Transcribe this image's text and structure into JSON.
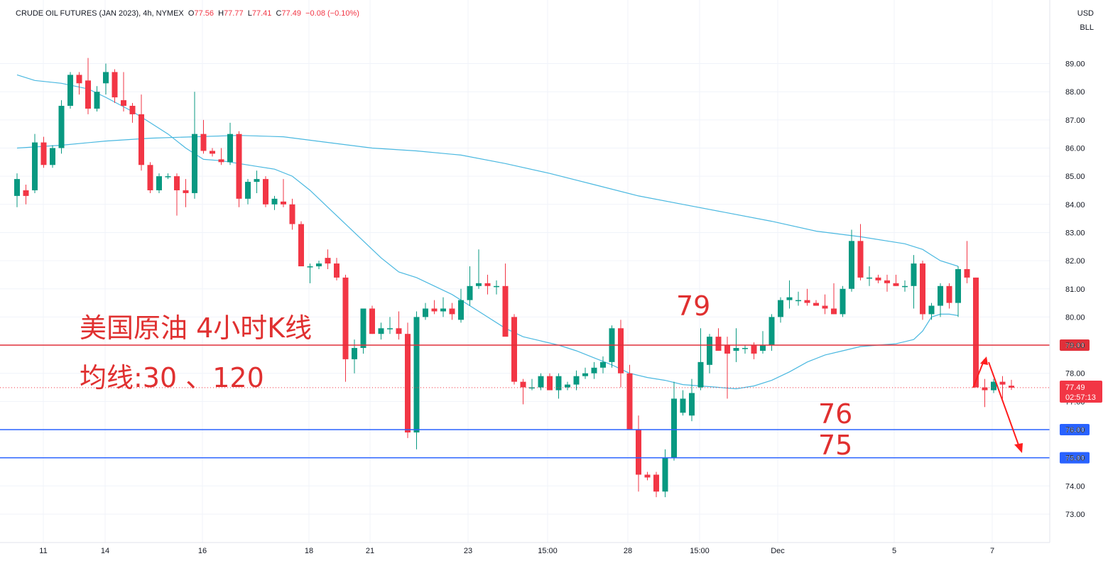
{
  "header": {
    "symbol": "CRUDE OIL FUTURES (JAN 2023), 4h, NYMEX",
    "open": "77.56",
    "high": "77.77",
    "low": "77.41",
    "close": "77.49",
    "change": "−0.08 (−0.10%)"
  },
  "currency": {
    "line1": "USD",
    "line2": "BLL"
  },
  "last_price": {
    "value": "77.49",
    "countdown": "02:57:13"
  },
  "annotations": {
    "title": "美国原油 4小时K线",
    "ma_text": "均线:30 、120",
    "level_79": "79",
    "level_76": "76",
    "level_75": "75"
  },
  "colors": {
    "up": "#089981",
    "down": "#f23645",
    "ma": "#4ab8e0",
    "resistance": "#e0303a",
    "support": "#2962ff"
  },
  "chart_data": {
    "type": "candlestick",
    "title": "",
    "yaxis": {
      "ticks": [
        73,
        74,
        75,
        76,
        77,
        78,
        79,
        80,
        81,
        82,
        83,
        84,
        85,
        86,
        87,
        88,
        89
      ],
      "ylim": [
        72.7,
        90.2
      ]
    },
    "xaxis": {
      "tick_labels": [
        "11",
        "14",
        "16",
        "18",
        "21",
        "23",
        "15:00",
        "28",
        "15:00",
        "Dec",
        "5",
        "7"
      ]
    },
    "horizontal_lines": [
      {
        "value": 79.0,
        "label": "79.00",
        "color": "red"
      },
      {
        "value": 76.0,
        "label": "76.00",
        "color": "blue"
      },
      {
        "value": 75.0,
        "label": "75.00",
        "color": "blue"
      }
    ],
    "candles": [
      {
        "o": 84.3,
        "h": 85.1,
        "l": 83.9,
        "c": 84.9
      },
      {
        "o": 84.5,
        "h": 84.7,
        "l": 84.0,
        "c": 84.3
      },
      {
        "o": 84.5,
        "h": 86.5,
        "l": 84.4,
        "c": 86.2
      },
      {
        "o": 86.2,
        "h": 86.4,
        "l": 85.3,
        "c": 85.4
      },
      {
        "o": 85.4,
        "h": 86.1,
        "l": 85.3,
        "c": 86.0
      },
      {
        "o": 86.0,
        "h": 87.7,
        "l": 85.8,
        "c": 87.5
      },
      {
        "o": 87.5,
        "h": 88.7,
        "l": 87.4,
        "c": 88.6
      },
      {
        "o": 88.6,
        "h": 88.7,
        "l": 87.9,
        "c": 88.3
      },
      {
        "o": 88.4,
        "h": 89.2,
        "l": 87.2,
        "c": 87.4
      },
      {
        "o": 87.4,
        "h": 88.2,
        "l": 87.3,
        "c": 88.0
      },
      {
        "o": 88.3,
        "h": 89.0,
        "l": 87.9,
        "c": 88.7
      },
      {
        "o": 88.7,
        "h": 88.8,
        "l": 87.6,
        "c": 87.8
      },
      {
        "o": 87.7,
        "h": 88.7,
        "l": 87.3,
        "c": 87.5
      },
      {
        "o": 87.5,
        "h": 87.6,
        "l": 86.9,
        "c": 87.2
      },
      {
        "o": 87.2,
        "h": 87.9,
        "l": 85.2,
        "c": 85.4
      },
      {
        "o": 85.4,
        "h": 85.5,
        "l": 84.4,
        "c": 84.5
      },
      {
        "o": 84.5,
        "h": 85.1,
        "l": 84.4,
        "c": 85.0
      },
      {
        "o": 85.0,
        "h": 85.1,
        "l": 84.9,
        "c": 85.0
      },
      {
        "o": 85.0,
        "h": 85.1,
        "l": 83.6,
        "c": 84.5
      },
      {
        "o": 84.5,
        "h": 84.9,
        "l": 83.9,
        "c": 84.4
      },
      {
        "o": 84.4,
        "h": 88.0,
        "l": 84.2,
        "c": 86.5
      },
      {
        "o": 86.5,
        "h": 87.0,
        "l": 85.8,
        "c": 85.9
      },
      {
        "o": 85.9,
        "h": 86.0,
        "l": 85.7,
        "c": 85.8
      },
      {
        "o": 85.6,
        "h": 86.0,
        "l": 85.4,
        "c": 85.5
      },
      {
        "o": 85.5,
        "h": 86.9,
        "l": 85.4,
        "c": 86.5
      },
      {
        "o": 86.5,
        "h": 86.6,
        "l": 83.9,
        "c": 84.2
      },
      {
        "o": 84.2,
        "h": 84.9,
        "l": 84.0,
        "c": 84.8
      },
      {
        "o": 84.8,
        "h": 85.2,
        "l": 84.4,
        "c": 84.9
      },
      {
        "o": 84.9,
        "h": 85.0,
        "l": 83.9,
        "c": 84.0
      },
      {
        "o": 84.0,
        "h": 84.3,
        "l": 83.8,
        "c": 84.2
      },
      {
        "o": 84.1,
        "h": 84.9,
        "l": 83.9,
        "c": 84.0
      },
      {
        "o": 84.0,
        "h": 84.2,
        "l": 83.1,
        "c": 83.3
      },
      {
        "o": 83.3,
        "h": 83.4,
        "l": 81.9,
        "c": 81.8
      },
      {
        "o": 81.8,
        "h": 81.9,
        "l": 81.2,
        "c": 81.8
      },
      {
        "o": 81.8,
        "h": 82.0,
        "l": 81.7,
        "c": 81.9
      },
      {
        "o": 82.1,
        "h": 82.4,
        "l": 81.7,
        "c": 81.9
      },
      {
        "o": 81.9,
        "h": 82.1,
        "l": 81.3,
        "c": 81.4
      },
      {
        "o": 81.4,
        "h": 81.5,
        "l": 77.7,
        "c": 78.5
      },
      {
        "o": 78.5,
        "h": 79.2,
        "l": 78.0,
        "c": 78.9
      },
      {
        "o": 78.9,
        "h": 80.3,
        "l": 78.7,
        "c": 80.3
      },
      {
        "o": 80.3,
        "h": 80.4,
        "l": 79.4,
        "c": 79.4
      },
      {
        "o": 79.4,
        "h": 79.8,
        "l": 79.2,
        "c": 79.6
      },
      {
        "o": 79.6,
        "h": 80.0,
        "l": 79.4,
        "c": 79.6
      },
      {
        "o": 79.6,
        "h": 80.2,
        "l": 79.2,
        "c": 79.4
      },
      {
        "o": 79.4,
        "h": 79.8,
        "l": 75.7,
        "c": 75.9
      },
      {
        "o": 75.9,
        "h": 80.2,
        "l": 75.3,
        "c": 80.0
      },
      {
        "o": 80.0,
        "h": 80.5,
        "l": 79.9,
        "c": 80.3
      },
      {
        "o": 80.3,
        "h": 80.6,
        "l": 80.1,
        "c": 80.2
      },
      {
        "o": 80.2,
        "h": 80.7,
        "l": 80.0,
        "c": 80.3
      },
      {
        "o": 80.3,
        "h": 80.5,
        "l": 79.9,
        "c": 80.1
      },
      {
        "o": 79.9,
        "h": 81.0,
        "l": 79.8,
        "c": 80.6
      },
      {
        "o": 80.6,
        "h": 81.8,
        "l": 80.4,
        "c": 81.1
      },
      {
        "o": 81.1,
        "h": 82.4,
        "l": 81.0,
        "c": 81.2
      },
      {
        "o": 81.2,
        "h": 81.5,
        "l": 80.8,
        "c": 81.1
      },
      {
        "o": 81.1,
        "h": 81.3,
        "l": 80.8,
        "c": 81.1
      },
      {
        "o": 81.1,
        "h": 81.9,
        "l": 79.4,
        "c": 79.3
      },
      {
        "o": 80.0,
        "h": 80.1,
        "l": 77.6,
        "c": 77.7
      },
      {
        "o": 77.7,
        "h": 77.8,
        "l": 76.9,
        "c": 77.5
      },
      {
        "o": 77.5,
        "h": 77.8,
        "l": 77.4,
        "c": 77.5
      },
      {
        "o": 77.5,
        "h": 78.0,
        "l": 77.4,
        "c": 77.9
      },
      {
        "o": 77.9,
        "h": 78.0,
        "l": 77.5,
        "c": 77.4
      },
      {
        "o": 77.4,
        "h": 78.0,
        "l": 77.1,
        "c": 77.9
      },
      {
        "o": 77.5,
        "h": 77.7,
        "l": 77.4,
        "c": 77.6
      },
      {
        "o": 77.6,
        "h": 78.1,
        "l": 77.4,
        "c": 77.9
      },
      {
        "o": 77.9,
        "h": 78.2,
        "l": 77.8,
        "c": 78.0
      },
      {
        "o": 78.0,
        "h": 78.4,
        "l": 77.8,
        "c": 78.2
      },
      {
        "o": 78.2,
        "h": 78.6,
        "l": 78.0,
        "c": 78.4
      },
      {
        "o": 78.4,
        "h": 79.7,
        "l": 78.2,
        "c": 79.6
      },
      {
        "o": 79.6,
        "h": 79.9,
        "l": 77.5,
        "c": 78.0
      },
      {
        "o": 78.0,
        "h": 78.3,
        "l": 76.1,
        "c": 76.0
      },
      {
        "o": 76.0,
        "h": 76.5,
        "l": 73.8,
        "c": 74.4
      },
      {
        "o": 74.4,
        "h": 74.5,
        "l": 74.2,
        "c": 74.3
      },
      {
        "o": 74.4,
        "h": 74.5,
        "l": 73.6,
        "c": 73.8
      },
      {
        "o": 73.8,
        "h": 75.3,
        "l": 73.6,
        "c": 75.0
      },
      {
        "o": 75.0,
        "h": 77.7,
        "l": 74.9,
        "c": 77.1
      },
      {
        "o": 76.6,
        "h": 77.4,
        "l": 76.5,
        "c": 77.1
      },
      {
        "o": 76.5,
        "h": 77.8,
        "l": 76.3,
        "c": 77.3
      },
      {
        "o": 77.5,
        "h": 79.6,
        "l": 77.4,
        "c": 78.4
      },
      {
        "o": 78.3,
        "h": 79.4,
        "l": 78.0,
        "c": 79.3
      },
      {
        "o": 79.3,
        "h": 79.6,
        "l": 78.8,
        "c": 78.8
      },
      {
        "o": 79.0,
        "h": 79.3,
        "l": 77.1,
        "c": 78.7
      },
      {
        "o": 78.8,
        "h": 79.6,
        "l": 78.4,
        "c": 78.9
      },
      {
        "o": 78.9,
        "h": 79.0,
        "l": 78.7,
        "c": 78.9
      },
      {
        "o": 79.0,
        "h": 79.1,
        "l": 78.5,
        "c": 78.7
      },
      {
        "o": 78.8,
        "h": 79.5,
        "l": 78.7,
        "c": 79.0
      },
      {
        "o": 79.0,
        "h": 80.1,
        "l": 78.8,
        "c": 80.0
      },
      {
        "o": 80.0,
        "h": 80.7,
        "l": 79.8,
        "c": 80.6
      },
      {
        "o": 80.6,
        "h": 81.3,
        "l": 80.3,
        "c": 80.7
      },
      {
        "o": 80.6,
        "h": 80.9,
        "l": 80.4,
        "c": 80.6
      },
      {
        "o": 80.6,
        "h": 81.0,
        "l": 80.4,
        "c": 80.5
      },
      {
        "o": 80.5,
        "h": 80.6,
        "l": 80.4,
        "c": 80.4
      },
      {
        "o": 80.4,
        "h": 80.8,
        "l": 80.1,
        "c": 80.3
      },
      {
        "o": 80.3,
        "h": 81.2,
        "l": 80.1,
        "c": 80.1
      },
      {
        "o": 80.1,
        "h": 81.1,
        "l": 80.0,
        "c": 81.0
      },
      {
        "o": 81.0,
        "h": 83.1,
        "l": 80.9,
        "c": 82.7
      },
      {
        "o": 82.7,
        "h": 83.3,
        "l": 81.3,
        "c": 81.4
      },
      {
        "o": 81.4,
        "h": 81.8,
        "l": 81.1,
        "c": 81.4
      },
      {
        "o": 81.4,
        "h": 81.5,
        "l": 81.2,
        "c": 81.3
      },
      {
        "o": 81.3,
        "h": 81.5,
        "l": 80.9,
        "c": 81.2
      },
      {
        "o": 81.2,
        "h": 81.5,
        "l": 81.1,
        "c": 81.1
      },
      {
        "o": 81.1,
        "h": 81.3,
        "l": 80.9,
        "c": 81.1
      },
      {
        "o": 81.1,
        "h": 82.2,
        "l": 80.3,
        "c": 81.9
      },
      {
        "o": 81.9,
        "h": 82.0,
        "l": 79.9,
        "c": 80.1
      },
      {
        "o": 80.1,
        "h": 80.5,
        "l": 79.9,
        "c": 80.4
      },
      {
        "o": 80.4,
        "h": 81.2,
        "l": 80.0,
        "c": 81.1
      },
      {
        "o": 81.1,
        "h": 81.2,
        "l": 80.3,
        "c": 80.5
      },
      {
        "o": 80.5,
        "h": 81.8,
        "l": 80.0,
        "c": 81.7
      },
      {
        "o": 81.7,
        "h": 82.7,
        "l": 81.2,
        "c": 81.4
      },
      {
        "o": 81.4,
        "h": 81.4,
        "l": 77.5,
        "c": 77.5
      },
      {
        "o": 77.5,
        "h": 77.8,
        "l": 76.8,
        "c": 77.4
      },
      {
        "o": 77.4,
        "h": 77.8,
        "l": 77.3,
        "c": 77.7
      },
      {
        "o": 77.7,
        "h": 77.9,
        "l": 77.1,
        "c": 77.6
      },
      {
        "o": 77.56,
        "h": 77.77,
        "l": 77.41,
        "c": 77.49
      }
    ],
    "series": [
      {
        "name": "",
        "type": "ma",
        "period": 30,
        "points": [
          [
            0,
            88.6
          ],
          [
            2,
            88.4
          ],
          [
            5,
            88.3
          ],
          [
            8,
            88.1
          ],
          [
            10,
            87.8
          ],
          [
            13,
            87.3
          ],
          [
            15,
            86.9
          ],
          [
            17,
            86.5
          ],
          [
            19,
            86.0
          ],
          [
            21,
            85.6
          ],
          [
            23,
            85.55
          ],
          [
            25,
            85.45
          ],
          [
            27,
            85.35
          ],
          [
            29,
            85.25
          ],
          [
            31,
            85.0
          ],
          [
            33,
            84.5
          ],
          [
            35,
            83.9
          ],
          [
            37,
            83.3
          ],
          [
            39,
            82.7
          ],
          [
            41,
            82.1
          ],
          [
            43,
            81.6
          ],
          [
            45,
            81.4
          ],
          [
            47,
            81.1
          ],
          [
            49,
            80.8
          ],
          [
            51,
            80.4
          ],
          [
            53,
            80.0
          ],
          [
            55,
            79.6
          ],
          [
            57,
            79.3
          ],
          [
            59,
            79.15
          ],
          [
            61,
            79.0
          ],
          [
            63,
            78.8
          ],
          [
            65,
            78.55
          ],
          [
            67,
            78.3
          ],
          [
            69,
            78.0
          ],
          [
            71,
            77.85
          ],
          [
            73,
            77.75
          ],
          [
            75,
            77.6
          ],
          [
            77,
            77.55
          ],
          [
            79,
            77.5
          ],
          [
            81,
            77.45
          ],
          [
            83,
            77.55
          ],
          [
            85,
            77.75
          ],
          [
            87,
            78.05
          ],
          [
            89,
            78.4
          ],
          [
            91,
            78.65
          ],
          [
            93,
            78.8
          ],
          [
            95,
            78.95
          ],
          [
            97,
            79.0
          ],
          [
            99,
            79.05
          ],
          [
            101,
            79.2
          ],
          [
            102,
            79.5
          ],
          [
            103,
            80.0
          ],
          [
            104,
            80.1
          ],
          [
            105,
            80.1
          ],
          [
            106,
            80.05
          ]
        ]
      },
      {
        "name": "",
        "type": "ma",
        "period": 120,
        "points": [
          [
            0,
            86.0
          ],
          [
            5,
            86.1
          ],
          [
            10,
            86.25
          ],
          [
            15,
            86.35
          ],
          [
            20,
            86.4
          ],
          [
            25,
            86.45
          ],
          [
            30,
            86.4
          ],
          [
            35,
            86.2
          ],
          [
            40,
            86.0
          ],
          [
            45,
            85.9
          ],
          [
            50,
            85.75
          ],
          [
            55,
            85.45
          ],
          [
            60,
            85.1
          ],
          [
            65,
            84.7
          ],
          [
            70,
            84.3
          ],
          [
            75,
            84.0
          ],
          [
            80,
            83.7
          ],
          [
            85,
            83.4
          ],
          [
            90,
            83.05
          ],
          [
            95,
            82.85
          ],
          [
            100,
            82.6
          ],
          [
            102,
            82.4
          ],
          [
            103,
            82.2
          ],
          [
            104,
            82.0
          ],
          [
            106,
            81.8
          ]
        ]
      }
    ]
  }
}
